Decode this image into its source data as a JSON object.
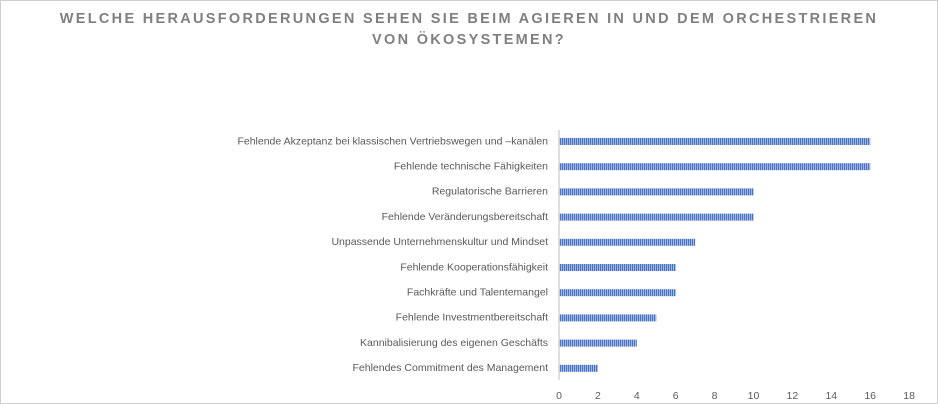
{
  "title_lines": [
    "WELCHE HERAUSFORDERUNGEN SEHEN SIE BEIM AGIEREN IN UND DEM ORCHESTRIEREN",
    "VON ÖKOSYSTEMEN?"
  ],
  "colors": {
    "bar": "#4a72c4",
    "bar_stripe": "#c9d6ee",
    "axis": "#bfbfbf",
    "text": "#595959",
    "title": "#7f7f7f"
  },
  "chart_data": {
    "type": "bar",
    "orientation": "horizontal",
    "title": "WELCHE HERAUSFORDERUNGEN SEHEN SIE BEIM AGIEREN IN UND DEM ORCHESTRIEREN VON ÖKOSYSTEMEN?",
    "categories": [
      "Fehlende Akzeptanz bei klassischen Vertriebswegen und –kanälen",
      "Fehlende technische Fähigkeiten",
      "Regulatorische Barrieren",
      "Fehlende Veränderungsbereitschaft",
      "Unpassende Unternehmenskultur und Mindset",
      "Fehlende Kooperationsfähigkeit",
      "Fachkräfte und Talentemangel",
      "Fehlende Investmentbereitschaft",
      "Kannibalisierung des eigenen Geschäfts",
      "Fehlendes Commitment des Management"
    ],
    "values": [
      16,
      16,
      10,
      10,
      7,
      6,
      6,
      5,
      4,
      2
    ],
    "xlim": [
      0,
      18
    ],
    "xticks": [
      0,
      2,
      4,
      6,
      8,
      10,
      12,
      14,
      16,
      18
    ],
    "xlabel": "",
    "ylabel": "",
    "grid": false,
    "legend": "none"
  }
}
